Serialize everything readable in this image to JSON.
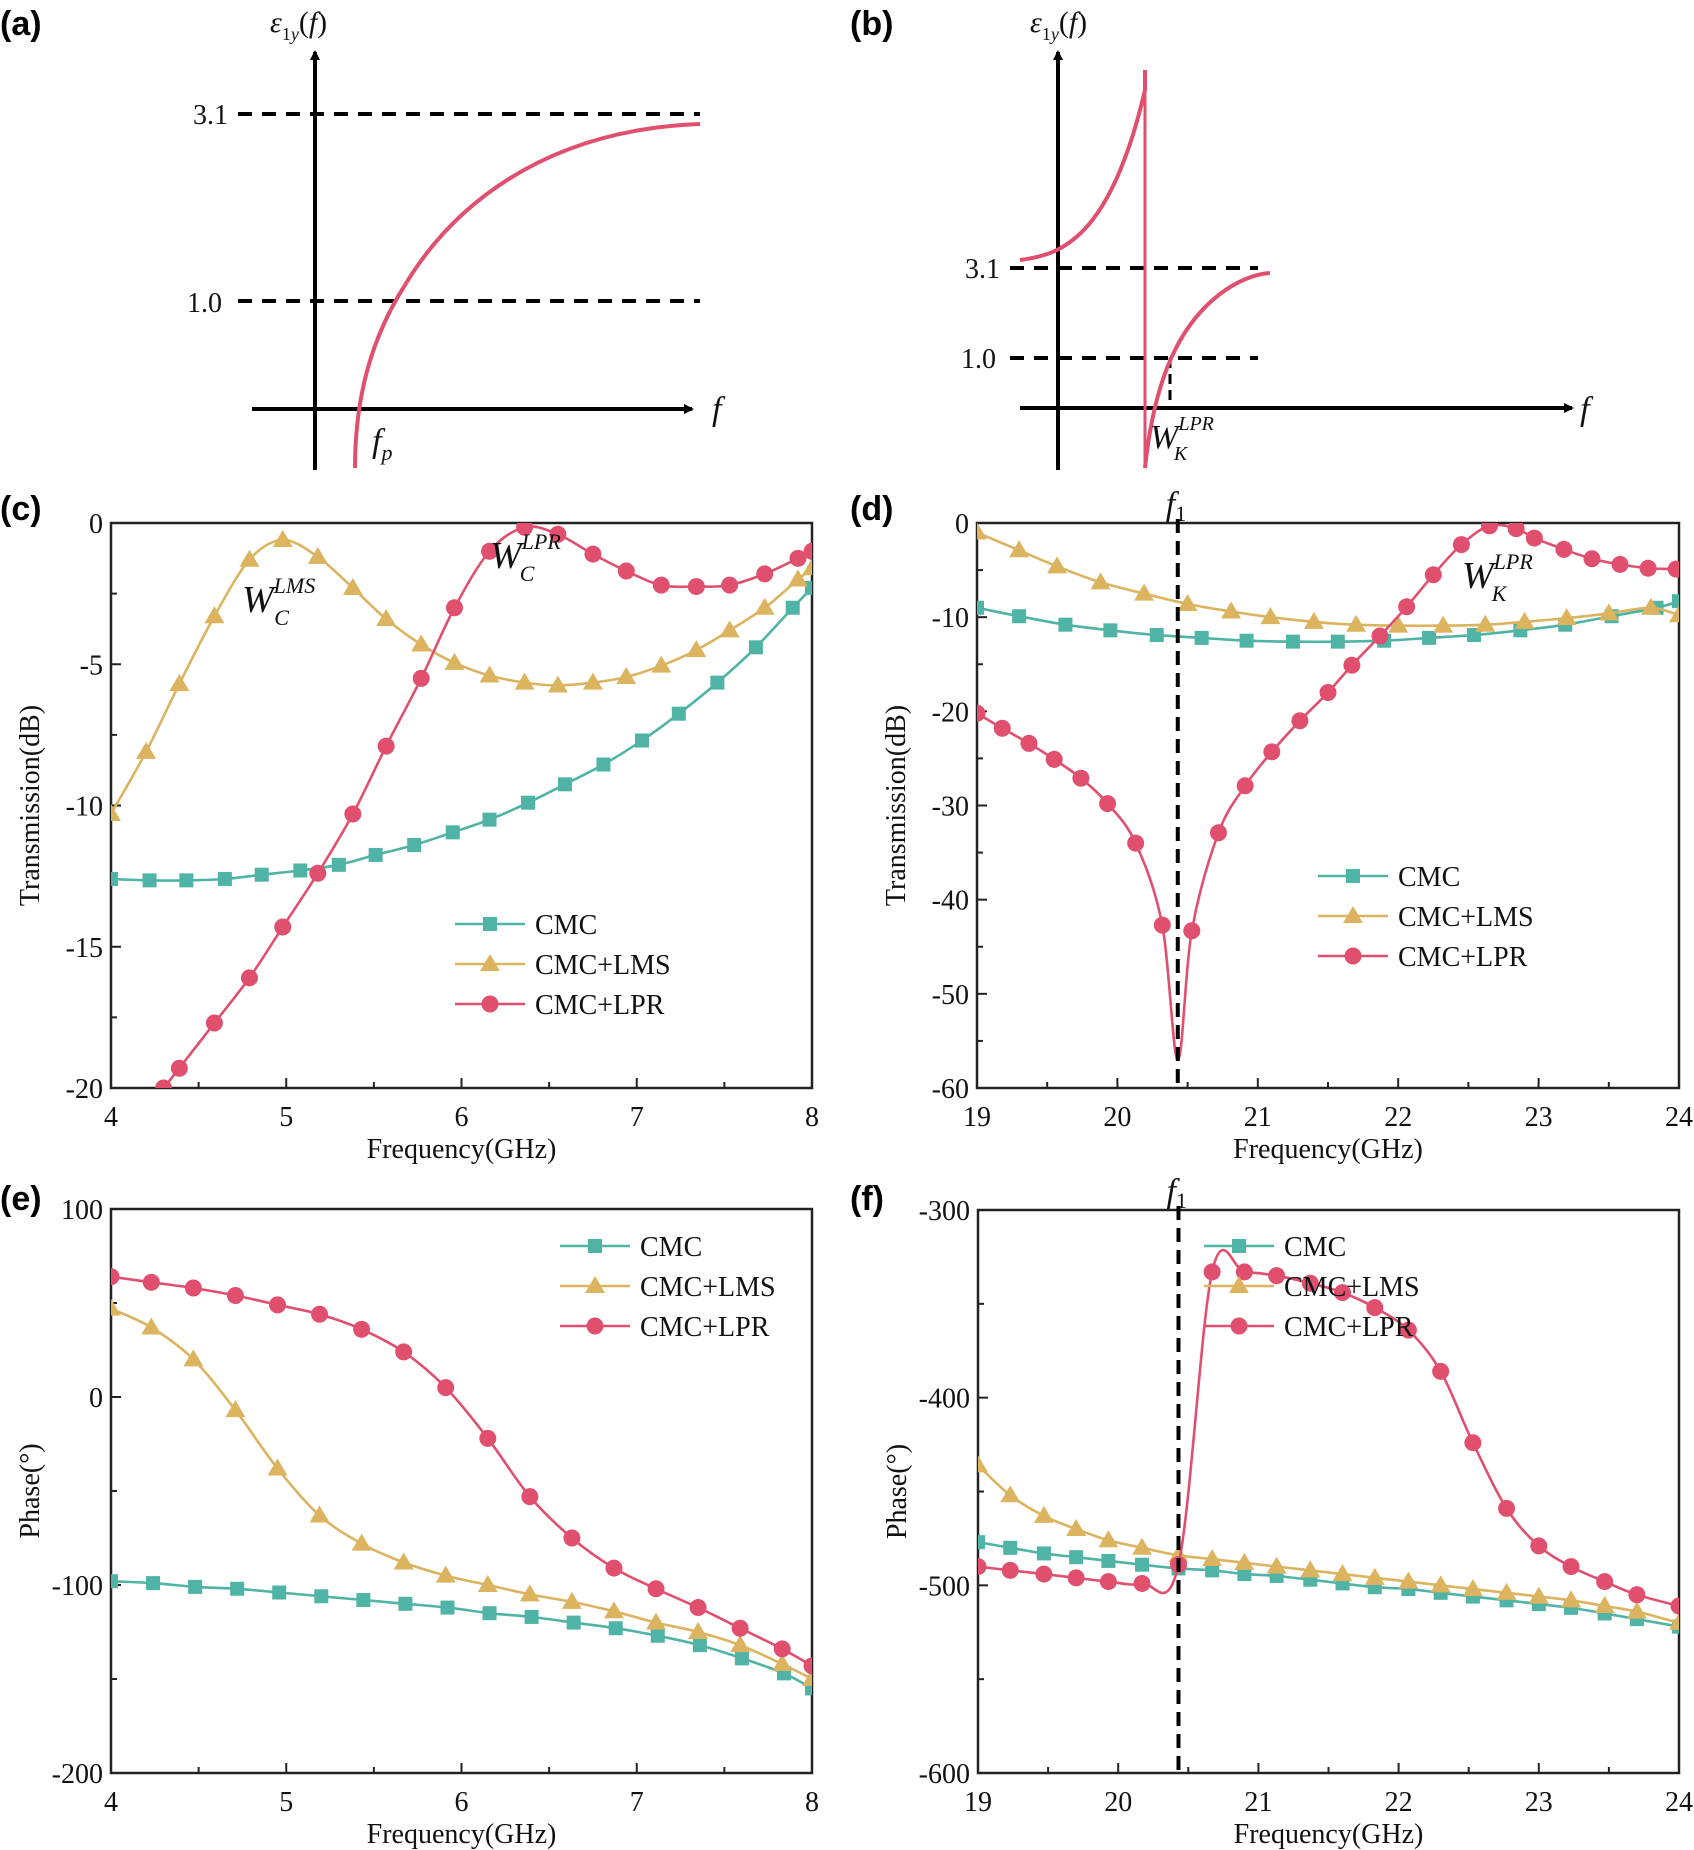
{
  "colors": {
    "CMC": "#4fb3a5",
    "CMC+LMS": "#dcb35f",
    "CMC+LPR": "#e0506e",
    "axis": "#222222",
    "dash": "#000000"
  },
  "chart_data": [
    {
      "id": "a",
      "panel_label": "(a)",
      "type": "line",
      "title": "",
      "ylabel": "ε1y(f)",
      "xlabel": "f",
      "reference_lines": [
        {
          "label": "3.1",
          "value": 3.1
        },
        {
          "label": "1.0",
          "value": 1.0
        }
      ],
      "annotations": [
        {
          "text": "f",
          "subscript": "p",
          "meaning": "plasma frequency where ε crosses 0"
        }
      ],
      "description": "Schematic Drude-like curve rising from negative values, crossing zero at f_p, crossing 1.0, and approaching 3.1 asymptotically"
    },
    {
      "id": "b",
      "panel_label": "(b)",
      "type": "line",
      "title": "",
      "ylabel": "ε1y(f)",
      "xlabel": "f",
      "reference_lines": [
        {
          "label": "3.1",
          "value": 3.1
        },
        {
          "label": "1.0",
          "value": 1.0
        }
      ],
      "annotations": [
        {
          "text": "W",
          "subscript": "K",
          "superscript": "LPR"
        }
      ],
      "description": "Schematic Lorentz-resonance curve: starts just above 3.1, rises to a pole, drops to large negative value, then recovers crossing 1.0 at W_K^LPR and approaches 3.1"
    },
    {
      "id": "c",
      "panel_label": "(c)",
      "type": "line",
      "xlabel": "Frequency(GHz)",
      "ylabel": "Transmission(dB)",
      "xlim": [
        4,
        8
      ],
      "ylim": [
        -20,
        0
      ],
      "xticks": [
        "4",
        "5",
        "6",
        "7",
        "8"
      ],
      "yticks": [
        "0",
        "-5",
        "-10",
        "-15",
        "-20"
      ],
      "xtick_values": [
        4,
        5,
        6,
        7,
        8
      ],
      "ytick_values": [
        0,
        -5,
        -10,
        -15,
        -20
      ],
      "legend_position": "bottom-right",
      "annotations": [
        {
          "text": "W",
          "subscript": "C",
          "superscript": "LMS",
          "x": 4.78,
          "y": -3.3
        },
        {
          "text": "W",
          "subscript": "C",
          "superscript": "LPR",
          "x": 6.2,
          "y": -2.3
        }
      ],
      "series": [
        {
          "name": "CMC",
          "marker": "square",
          "x": [
            4.0,
            4.22,
            4.43,
            4.65,
            4.86,
            5.08,
            5.3,
            5.51,
            5.73,
            5.95,
            6.16,
            6.38,
            6.59,
            6.81,
            7.03,
            7.24,
            7.46,
            7.68,
            7.89,
            8.0
          ],
          "y": [
            -12.6,
            -12.65,
            -12.65,
            -12.6,
            -12.45,
            -12.3,
            -12.1,
            -11.75,
            -11.4,
            -10.95,
            -10.5,
            -9.9,
            -9.25,
            -8.55,
            -7.7,
            -6.75,
            -5.65,
            -4.4,
            -3.0,
            -2.3
          ]
        },
        {
          "name": "CMC+LMS",
          "marker": "triangle",
          "x": [
            4.0,
            4.2,
            4.39,
            4.59,
            4.79,
            4.98,
            5.18,
            5.38,
            5.57,
            5.77,
            5.96,
            6.16,
            6.36,
            6.55,
            6.75,
            6.94,
            7.14,
            7.34,
            7.53,
            7.73,
            7.92,
            8.0
          ],
          "y": [
            -10.3,
            -8.1,
            -5.7,
            -3.3,
            -1.3,
            -0.6,
            -1.2,
            -2.3,
            -3.4,
            -4.3,
            -4.95,
            -5.4,
            -5.65,
            -5.75,
            -5.65,
            -5.45,
            -5.05,
            -4.5,
            -3.8,
            -3.0,
            -2.0,
            -1.6
          ]
        },
        {
          "name": "CMC+LPR",
          "marker": "circle",
          "x": [
            4.3,
            4.39,
            4.59,
            4.79,
            4.98,
            5.18,
            5.38,
            5.57,
            5.77,
            5.96,
            6.16,
            6.36,
            6.55,
            6.75,
            6.94,
            7.14,
            7.34,
            7.53,
            7.73,
            7.92,
            8.0
          ],
          "y": [
            -20.0,
            -19.3,
            -17.7,
            -16.1,
            -14.3,
            -12.4,
            -10.3,
            -7.9,
            -5.5,
            -3.0,
            -1.0,
            -0.15,
            -0.4,
            -1.1,
            -1.7,
            -2.2,
            -2.25,
            -2.2,
            -1.8,
            -1.25,
            -1.0
          ]
        }
      ]
    },
    {
      "id": "d",
      "panel_label": "(d)",
      "type": "line",
      "xlabel": "Frequency(GHz)",
      "ylabel": "Transmission(dB)",
      "xlim": [
        19,
        24
      ],
      "ylim": [
        -60,
        0
      ],
      "xticks": [
        "19",
        "20",
        "21",
        "22",
        "23",
        "24"
      ],
      "yticks": [
        "0",
        "-10",
        "-20",
        "-30",
        "-40",
        "-50",
        "-60"
      ],
      "xtick_values": [
        19,
        20,
        21,
        22,
        23,
        24
      ],
      "ytick_values": [
        0,
        -10,
        -20,
        -30,
        -40,
        -50,
        -60
      ],
      "legend_position": "lower-center-right",
      "vline": {
        "label": "f1",
        "x": 20.43
      },
      "annotations": [
        {
          "text": "W",
          "subscript": "K",
          "superscript": "LPR",
          "x": 22.6,
          "y": -6.5
        }
      ],
      "series": [
        {
          "name": "CMC",
          "marker": "square",
          "x": [
            19.0,
            19.3,
            19.63,
            19.95,
            20.28,
            20.6,
            20.92,
            21.25,
            21.57,
            21.9,
            22.22,
            22.54,
            22.87,
            23.19,
            23.52,
            23.84,
            24.0
          ],
          "y": [
            -9.0,
            -9.9,
            -10.8,
            -11.4,
            -11.9,
            -12.2,
            -12.5,
            -12.6,
            -12.6,
            -12.5,
            -12.2,
            -11.9,
            -11.4,
            -10.8,
            -9.9,
            -9.0,
            -8.3
          ]
        },
        {
          "name": "CMC+LMS",
          "marker": "triangle",
          "x": [
            19.0,
            19.3,
            19.57,
            19.88,
            20.19,
            20.5,
            20.81,
            21.09,
            21.4,
            21.7,
            22.0,
            22.32,
            22.62,
            22.9,
            23.2,
            23.5,
            23.8,
            24.0
          ],
          "y": [
            -1.0,
            -2.9,
            -4.6,
            -6.3,
            -7.5,
            -8.6,
            -9.4,
            -10.0,
            -10.5,
            -10.8,
            -10.9,
            -10.9,
            -10.8,
            -10.5,
            -10.1,
            -9.6,
            -9.0,
            -9.8
          ]
        },
        {
          "name": "CMC+LPR",
          "marker": "circle",
          "x": [
            19.0,
            19.18,
            19.37,
            19.55,
            19.74,
            19.93,
            20.13,
            20.32,
            20.43,
            20.53,
            20.72,
            20.91,
            21.1,
            21.3,
            21.5,
            21.67,
            21.87,
            22.06,
            22.25,
            22.45,
            22.65,
            22.84,
            22.97,
            23.18,
            23.38,
            23.58,
            23.78,
            23.98
          ],
          "y": [
            -20.2,
            -21.8,
            -23.4,
            -25.1,
            -27.1,
            -29.8,
            -34.0,
            -42.7,
            -57.0,
            -43.3,
            -32.9,
            -27.9,
            -24.3,
            -21.0,
            -18.0,
            -15.1,
            -12.0,
            -8.9,
            -5.5,
            -2.3,
            -0.3,
            -0.6,
            -1.6,
            -2.8,
            -3.8,
            -4.4,
            -4.8,
            -4.9
          ]
        }
      ]
    },
    {
      "id": "e",
      "panel_label": "(e)",
      "type": "line",
      "xlabel": "Frequency(GHz)",
      "ylabel": "Phase(°)",
      "xlim": [
        4,
        8
      ],
      "ylim": [
        -200,
        100
      ],
      "xticks": [
        "4",
        "5",
        "6",
        "7",
        "8"
      ],
      "yticks": [
        "100",
        "0",
        "-100",
        "-200"
      ],
      "xtick_values": [
        4,
        5,
        6,
        7,
        8
      ],
      "ytick_values": [
        100,
        0,
        -100,
        -200
      ],
      "legend_position": "top-right",
      "series": [
        {
          "name": "CMC",
          "marker": "square",
          "x": [
            4.0,
            4.24,
            4.48,
            4.72,
            4.96,
            5.2,
            5.44,
            5.68,
            5.92,
            6.16,
            6.4,
            6.64,
            6.88,
            7.12,
            7.36,
            7.6,
            7.84,
            8.0
          ],
          "y": [
            -98,
            -99,
            -101,
            -102,
            -104,
            -106,
            -108,
            -110,
            -112,
            -115,
            -117,
            -120,
            -123,
            -127,
            -132,
            -139,
            -147,
            -155
          ]
        },
        {
          "name": "CMC+LMS",
          "marker": "triangle",
          "x": [
            4.0,
            4.23,
            4.47,
            4.71,
            4.95,
            5.19,
            5.43,
            5.67,
            5.91,
            6.15,
            6.39,
            6.63,
            6.87,
            7.11,
            7.35,
            7.59,
            7.83,
            8.0
          ],
          "y": [
            47,
            37,
            20,
            -7,
            -38,
            -63,
            -78,
            -88,
            -95,
            -100,
            -105,
            -109,
            -114,
            -120,
            -125,
            -132,
            -142,
            -150
          ]
        },
        {
          "name": "CMC+LPR",
          "marker": "circle",
          "x": [
            4.0,
            4.23,
            4.47,
            4.71,
            4.95,
            5.19,
            5.43,
            5.67,
            5.91,
            6.15,
            6.39,
            6.63,
            6.87,
            7.11,
            7.35,
            7.59,
            7.83,
            8.0
          ],
          "y": [
            64,
            61,
            58,
            54,
            49,
            44,
            36,
            24,
            5,
            -22,
            -53,
            -75,
            -91,
            -102,
            -112,
            -123,
            -134,
            -143
          ]
        }
      ]
    },
    {
      "id": "f",
      "panel_label": "(f)",
      "type": "line",
      "xlabel": "Frequency(GHz)",
      "ylabel": "Phase(°)",
      "xlim": [
        19,
        24
      ],
      "ylim": [
        -600,
        -300
      ],
      "xticks": [
        "19",
        "20",
        "21",
        "22",
        "23",
        "24"
      ],
      "yticks": [
        "-300",
        "-400",
        "-500",
        "-600"
      ],
      "xtick_values": [
        19,
        20,
        21,
        22,
        23,
        24
      ],
      "ytick_values": [
        -300,
        -400,
        -500,
        -600
      ],
      "legend_position": "top-right",
      "vline": {
        "label": "f1",
        "x": 20.43
      },
      "series": [
        {
          "name": "CMC",
          "marker": "square",
          "x": [
            19.0,
            19.23,
            19.47,
            19.7,
            19.93,
            20.17,
            20.43,
            20.67,
            20.9,
            21.13,
            21.37,
            21.6,
            21.83,
            22.07,
            22.3,
            22.53,
            22.77,
            23.0,
            23.23,
            23.47,
            23.7,
            24.0
          ],
          "y": [
            -477,
            -480,
            -483,
            -485,
            -487,
            -489,
            -491,
            -492,
            -494,
            -495,
            -497,
            -499,
            -501,
            -502,
            -504,
            -506,
            -508,
            -510,
            -512,
            -515,
            -518,
            -522
          ]
        },
        {
          "name": "CMC+LMS",
          "marker": "triangle",
          "x": [
            19.0,
            19.23,
            19.47,
            19.7,
            19.93,
            20.17,
            20.43,
            20.67,
            20.9,
            21.13,
            21.37,
            21.6,
            21.83,
            22.07,
            22.3,
            22.53,
            22.77,
            23.0,
            23.23,
            23.47,
            23.7,
            24.0
          ],
          "y": [
            -436,
            -452,
            -463,
            -470,
            -476,
            -480,
            -484,
            -486,
            -488,
            -490,
            -492,
            -494,
            -496,
            -498,
            -500,
            -502,
            -504,
            -506,
            -508,
            -511,
            -514,
            -520
          ]
        },
        {
          "name": "CMC+LPR",
          "marker": "circle",
          "x": [
            19.0,
            19.23,
            19.47,
            19.7,
            19.93,
            20.17,
            20.43,
            20.67,
            20.9,
            21.13,
            21.37,
            21.6,
            21.83,
            22.07,
            22.3,
            22.53,
            22.77,
            23.0,
            23.23,
            23.47,
            23.7,
            24.0
          ],
          "y": [
            -490,
            -492,
            -494,
            -496,
            -498,
            -499,
            -489,
            -333,
            -333,
            -335,
            -339,
            -344,
            -352,
            -364,
            -386,
            -424,
            -459,
            -479,
            -490,
            -498,
            -505,
            -511
          ]
        }
      ]
    }
  ]
}
